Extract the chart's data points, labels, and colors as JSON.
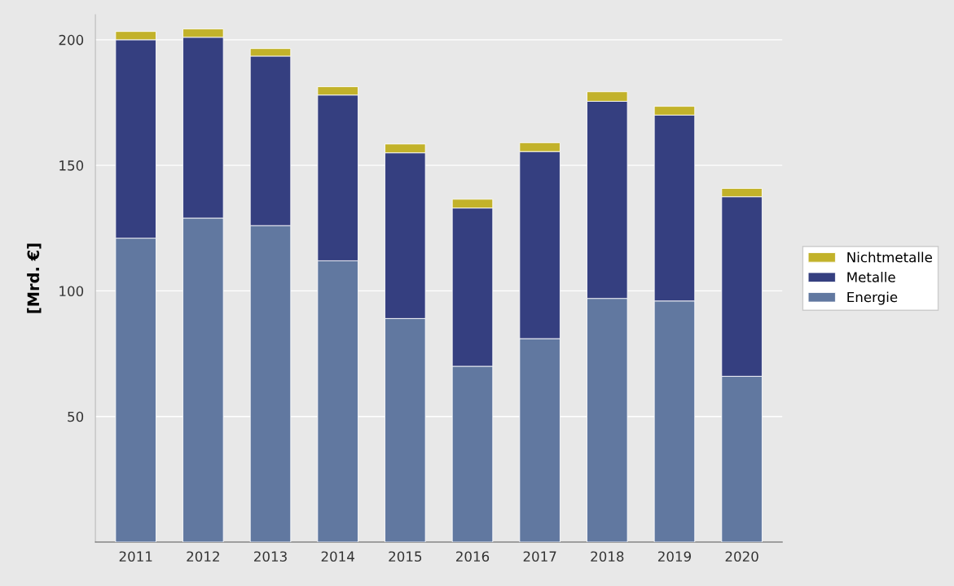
{
  "chart_data": {
    "type": "bar",
    "stacked": true,
    "ylabel": "[Mrd. €]",
    "categories": [
      "2011",
      "2012",
      "2013",
      "2014",
      "2015",
      "2016",
      "2017",
      "2018",
      "2019",
      "2020"
    ],
    "series": [
      {
        "name": "Energie",
        "color": "#6178a0",
        "values": [
          121,
          129,
          126,
          112,
          89,
          70,
          81,
          97,
          96,
          66
        ]
      },
      {
        "name": "Metalle",
        "color": "#353f80",
        "values": [
          79,
          72,
          67.5,
          66,
          66,
          63,
          74.5,
          78.5,
          74,
          71.5
        ]
      },
      {
        "name": "Nichtmetalle",
        "color": "#c2b22a",
        "values": [
          3.3,
          3.3,
          3,
          3.3,
          3.5,
          3.5,
          3.5,
          3.8,
          3.5,
          3.3
        ]
      }
    ],
    "ylim": [
      0,
      210
    ],
    "yticks": [
      50,
      100,
      150,
      200
    ],
    "grid": "y",
    "legend": "right"
  }
}
